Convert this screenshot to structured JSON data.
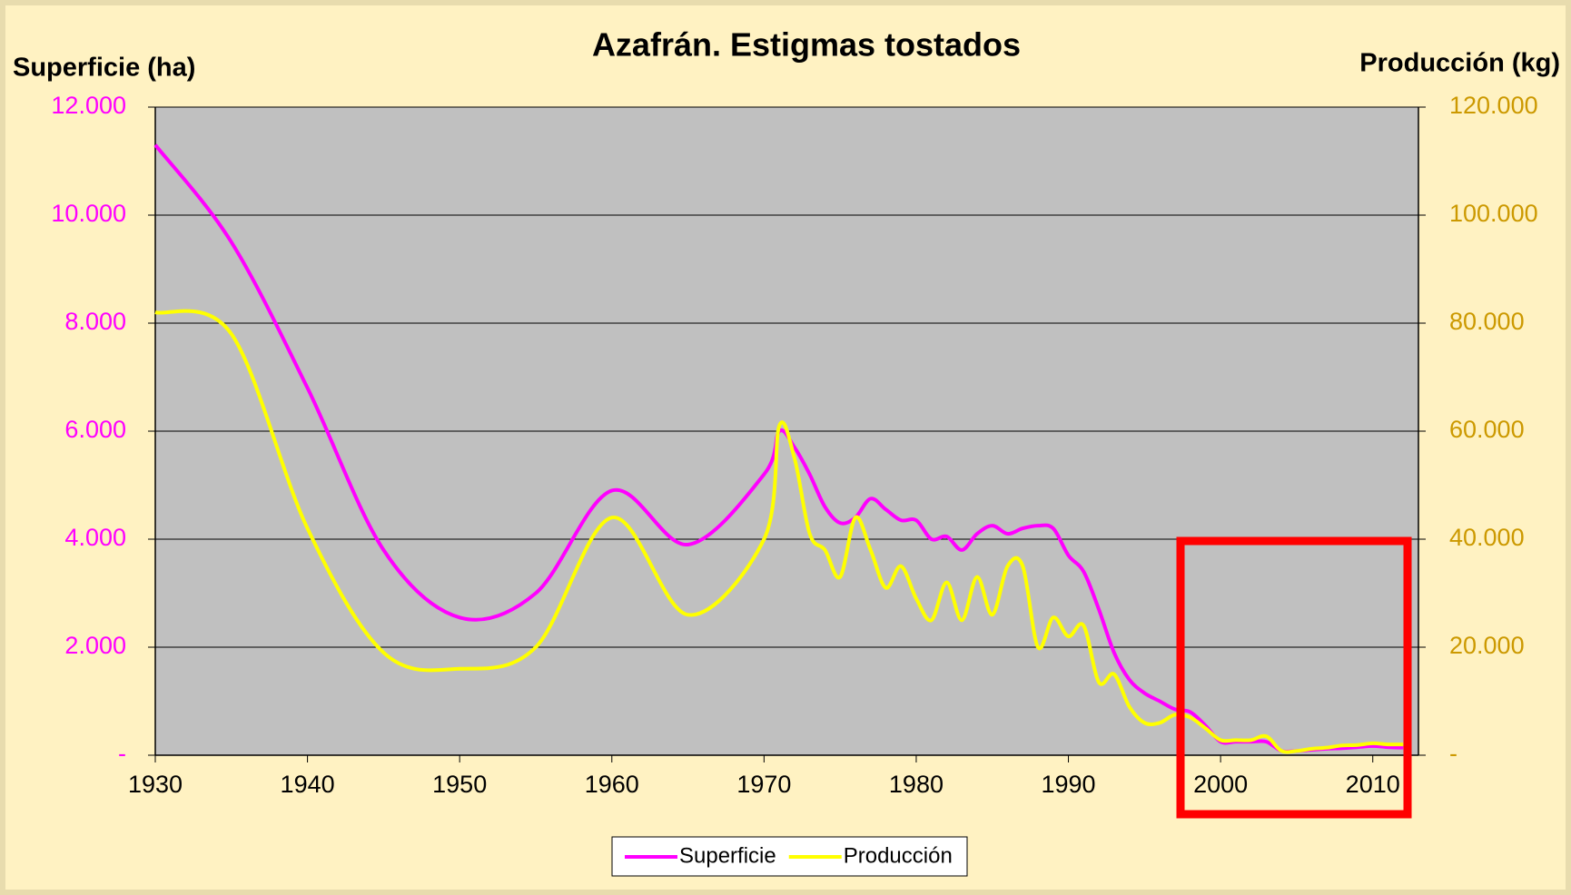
{
  "chart_data": {
    "type": "line",
    "title": "Azafrán. Estigmas tostados",
    "y_label": "Superficie (ha)",
    "y2_label": "Producción (kg)",
    "x": [
      1930,
      1935,
      1940,
      1945,
      1950,
      1955,
      1960,
      1965,
      1970,
      1971,
      1972,
      1973,
      1974,
      1975,
      1976,
      1977,
      1978,
      1979,
      1980,
      1981,
      1982,
      1983,
      1984,
      1985,
      1986,
      1987,
      1988,
      1989,
      1990,
      1991,
      1992,
      1993,
      1994,
      1995,
      1996,
      1997,
      1998,
      1999,
      2000,
      2001,
      2002,
      2003,
      2004,
      2005,
      2006,
      2007,
      2008,
      2009,
      2010,
      2011,
      2012
    ],
    "series": [
      {
        "name": "Superficie",
        "color": "#ff00ff",
        "axis": "y",
        "values": [
          11300,
          9500,
          6800,
          3800,
          2550,
          3000,
          4900,
          3900,
          5200,
          6000,
          5700,
          5200,
          4600,
          4300,
          4400,
          4750,
          4550,
          4350,
          4350,
          4000,
          4050,
          3800,
          4100,
          4250,
          4100,
          4200,
          4250,
          4200,
          3700,
          3400,
          2700,
          1900,
          1400,
          1150,
          1000,
          850,
          800,
          550,
          250,
          250,
          250,
          250,
          80,
          80,
          100,
          120,
          130,
          150,
          170,
          150,
          140
        ]
      },
      {
        "name": "Producción",
        "color": "#ffff00",
        "axis": "y2",
        "values": [
          82000,
          78000,
          42000,
          19000,
          16000,
          20000,
          44000,
          26000,
          40000,
          61000,
          55000,
          41000,
          38000,
          33000,
          44000,
          38000,
          31000,
          35000,
          29000,
          25000,
          32000,
          25000,
          33000,
          26000,
          35000,
          35000,
          20000,
          25500,
          22000,
          24000,
          13500,
          15000,
          9000,
          6000,
          6000,
          7500,
          7000,
          5000,
          2800,
          2800,
          2800,
          3500,
          800,
          800,
          1200,
          1400,
          1800,
          1900,
          2200,
          2000,
          2000
        ]
      }
    ],
    "xlim": [
      1930,
      2013
    ],
    "xticks": [
      1930,
      1940,
      1950,
      1960,
      1970,
      1980,
      1990,
      2000,
      2010
    ],
    "ylim": [
      0,
      12000
    ],
    "yticks": [
      {
        "value": 0,
        "label": "-"
      },
      {
        "value": 2000,
        "label": "2.000"
      },
      {
        "value": 4000,
        "label": "4.000"
      },
      {
        "value": 6000,
        "label": "6.000"
      },
      {
        "value": 8000,
        "label": "8.000"
      },
      {
        "value": 10000,
        "label": "10.000"
      },
      {
        "value": 12000,
        "label": "12.000"
      }
    ],
    "y2lim": [
      0,
      120000
    ],
    "y2ticks": [
      {
        "value": 0,
        "label": "-"
      },
      {
        "value": 20000,
        "label": "20.000"
      },
      {
        "value": 40000,
        "label": "40.000"
      },
      {
        "value": 60000,
        "label": "60.000"
      },
      {
        "value": 80000,
        "label": "80.000"
      },
      {
        "value": 100000,
        "label": "100.000"
      },
      {
        "value": 120000,
        "label": "120.000"
      }
    ],
    "y_color": "#ff00ff",
    "y2_color": "#cc9900",
    "grid": true,
    "legend": "bottom"
  }
}
